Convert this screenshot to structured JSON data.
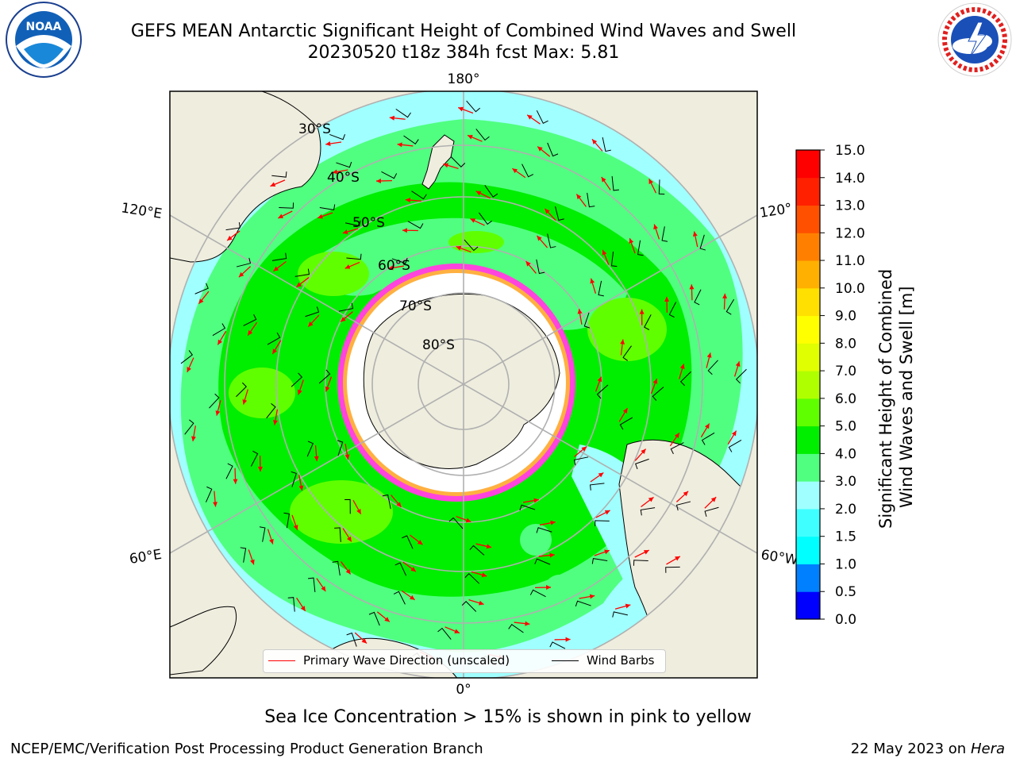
{
  "header": {
    "title_line1": "GEFS MEAN Antarctic Significant Height of Combined Wind Waves and Swell",
    "title_line2": "20230520 t18z 384h fcst   Max: 5.81"
  },
  "logos": {
    "left": "NOAA",
    "right": "NATIONAL WEATHER SERVICE"
  },
  "map": {
    "projection": "south-polar-stereographic",
    "longitude_labels": {
      "top": "180°",
      "bottom": "0°",
      "left_upper": "120°E",
      "left_lower": "60°E",
      "right_upper": "120°",
      "right_lower": "60°W"
    },
    "latitude_labels": [
      "30°S",
      "40°S",
      "50°S",
      "60°S",
      "70°S",
      "80°S"
    ],
    "colors": {
      "land": "#efedde",
      "ice_edge": "#ff44dd",
      "ice_inner": "#ffb040",
      "wave_arrow": "#ff0000",
      "wind_barb": "#000000",
      "grid": "#b0b0b0"
    }
  },
  "colorbar": {
    "ticks": [
      "15.0",
      "14.0",
      "13.0",
      "12.0",
      "11.0",
      "10.0",
      "9.0",
      "8.0",
      "7.0",
      "6.0",
      "5.0",
      "4.0",
      "3.0",
      "2.0",
      "1.5",
      "1.0",
      "0.5",
      "0.0"
    ],
    "colors": [
      "#0000ff",
      "#0080ff",
      "#00ffff",
      "#40ffff",
      "#a0ffff",
      "#50ff80",
      "#00ee00",
      "#60ff00",
      "#b0ff00",
      "#e0ff00",
      "#ffff00",
      "#ffe000",
      "#ffb000",
      "#ff8000",
      "#ff5000",
      "#ff2000",
      "#ff0000"
    ],
    "label_line1": "Significant Height of Combined",
    "label_line2": "Wind Waves and Swell [m]"
  },
  "legend": {
    "wave_label": "Primary Wave Direction (unscaled)",
    "barb_label": "Wind Barbs"
  },
  "ice_note": "Sea Ice Concentration > 15% is shown in pink to yellow",
  "footer": {
    "left": "NCEP/EMC/Verification Post Processing Product Generation Branch",
    "right_date": "22 May 2023 on",
    "right_host": "Hera"
  }
}
